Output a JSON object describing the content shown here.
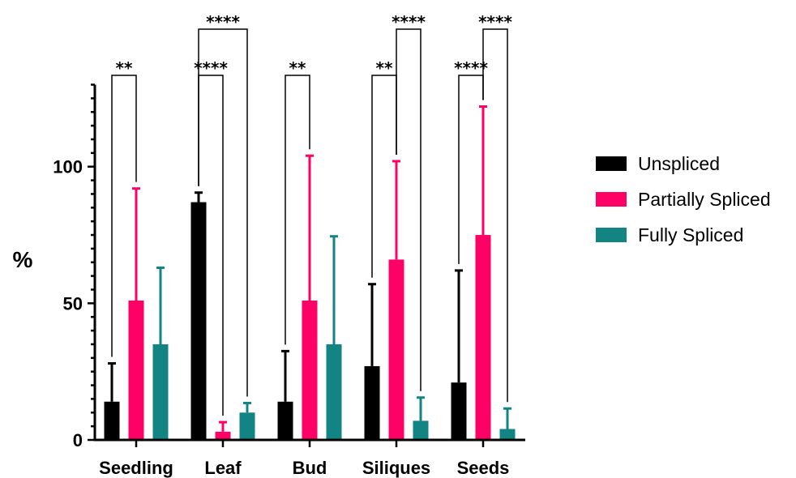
{
  "chart_data": {
    "type": "bar",
    "title": "",
    "xlabel": "",
    "ylabel": "%",
    "ylim": [
      0,
      130
    ],
    "yticks": [
      0,
      50,
      100
    ],
    "ytick_labels": [
      "0",
      "50",
      "100"
    ],
    "grid": false,
    "legend_position": "right",
    "categories": [
      "Seedling",
      "Leaf",
      "Bud",
      "Siliques",
      "Seeds"
    ],
    "series": [
      {
        "name": "Unspliced",
        "color": "#000000",
        "values": [
          14,
          87,
          14,
          27,
          21
        ],
        "errors": [
          14,
          3.5,
          18.5,
          30,
          41
        ]
      },
      {
        "name": "Partially Spliced",
        "color": "#ff0066",
        "values": [
          51,
          3,
          51,
          66,
          75
        ],
        "errors": [
          41,
          3.5,
          53,
          36,
          47
        ]
      },
      {
        "name": "Fully Spliced",
        "color": "#138484",
        "values": [
          35,
          10,
          35,
          7,
          4
        ],
        "errors": [
          28,
          3.5,
          39.5,
          8.5,
          7.5
        ]
      }
    ],
    "significance": [
      {
        "category": "Seedling",
        "from": "Unspliced",
        "to": "Partially Spliced",
        "label": "**"
      },
      {
        "category": "Leaf",
        "from": "Unspliced",
        "to": "Partially Spliced",
        "label": "****"
      },
      {
        "category": "Leaf",
        "from": "Unspliced",
        "to": "Fully Spliced",
        "label": "****"
      },
      {
        "category": "Bud",
        "from": "Unspliced",
        "to": "Partially Spliced",
        "label": "**"
      },
      {
        "category": "Siliques",
        "from": "Unspliced",
        "to": "Partially Spliced",
        "label": "**"
      },
      {
        "category": "Siliques",
        "from": "Partially Spliced",
        "to": "Fully Spliced",
        "label": "****"
      },
      {
        "category": "Seeds",
        "from": "Unspliced",
        "to": "Partially Spliced",
        "label": "****"
      },
      {
        "category": "Seeds",
        "from": "Partially Spliced",
        "to": "Fully Spliced",
        "label": "****"
      }
    ]
  }
}
